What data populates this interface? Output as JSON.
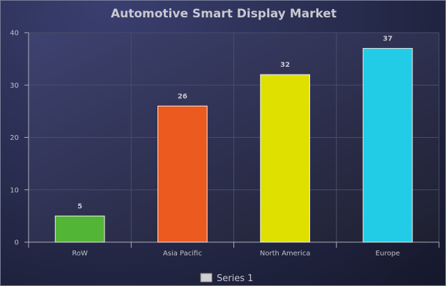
{
  "chart_data": {
    "type": "bar",
    "title": "Automotive Smart Display Market",
    "categories": [
      "RoW",
      "Asia Pacific",
      "North America",
      "Europe"
    ],
    "series": [
      {
        "name": "Series 1",
        "values": [
          5,
          26,
          32,
          37
        ]
      }
    ],
    "bar_colors": [
      "#52b535",
      "#ec5a1f",
      "#dfe000",
      "#23cce6"
    ],
    "ylim": [
      0,
      40
    ],
    "yticks": [
      0,
      10,
      20,
      30,
      40
    ],
    "xlabel": "",
    "ylabel": "",
    "grid": true,
    "legend_position": "bottom-center",
    "legend_swatch_color": "#d0d0d0"
  }
}
